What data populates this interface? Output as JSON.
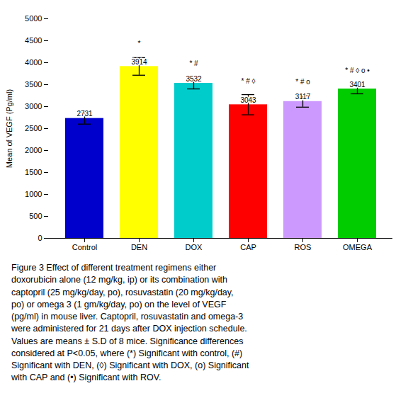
{
  "chart_data": {
    "type": "bar",
    "categories": [
      "Control",
      "DEN",
      "DOX",
      "CAP",
      "ROS",
      "OMEGA"
    ],
    "values": [
      2731,
      3914,
      3532,
      3043,
      3117,
      3401
    ],
    "errors": [
      130,
      200,
      130,
      230,
      130,
      110
    ],
    "colors": [
      "#0000cc",
      "#ffff00",
      "#00cccc",
      "#ff0000",
      "#cc99ff",
      "#00cc00"
    ],
    "ylabel": "Mean of VEGF (Pg/ml)",
    "ylim": [
      0,
      5000
    ],
    "yticks": [
      0,
      500,
      1000,
      1500,
      2000,
      2500,
      3000,
      3500,
      4000,
      4500,
      5000
    ],
    "grid": false,
    "data_labels": true,
    "significance_labels": [
      null,
      "*",
      "* #",
      "* # ◊",
      "* # o",
      "* # ◊ o •"
    ],
    "caption": [
      "Figure 3  Effect of different treatment regimens either",
      "doxorubicin alone (12 mg/kg, ip) or its combination with",
      "captopril (25 mg/kg/day, po), rosuvastatin (20 mg/kg/day,",
      "po) or omega 3 (1 gm/kg/day, po) on the level of VEGF",
      "(pg/ml) in mouse liver. Captopril, rosuvastatin and omega-3",
      "were administered for 21 days after DOX injection schedule.",
      "Values are means ± S.D of 8 mice. Significance differences",
      "considered at P<0.05, where (*) Significant with control, (#)",
      "Significant with DEN, (◊) Significant with DOX, (o) Significant",
      "with CAP and (•) Significant with ROV."
    ]
  }
}
